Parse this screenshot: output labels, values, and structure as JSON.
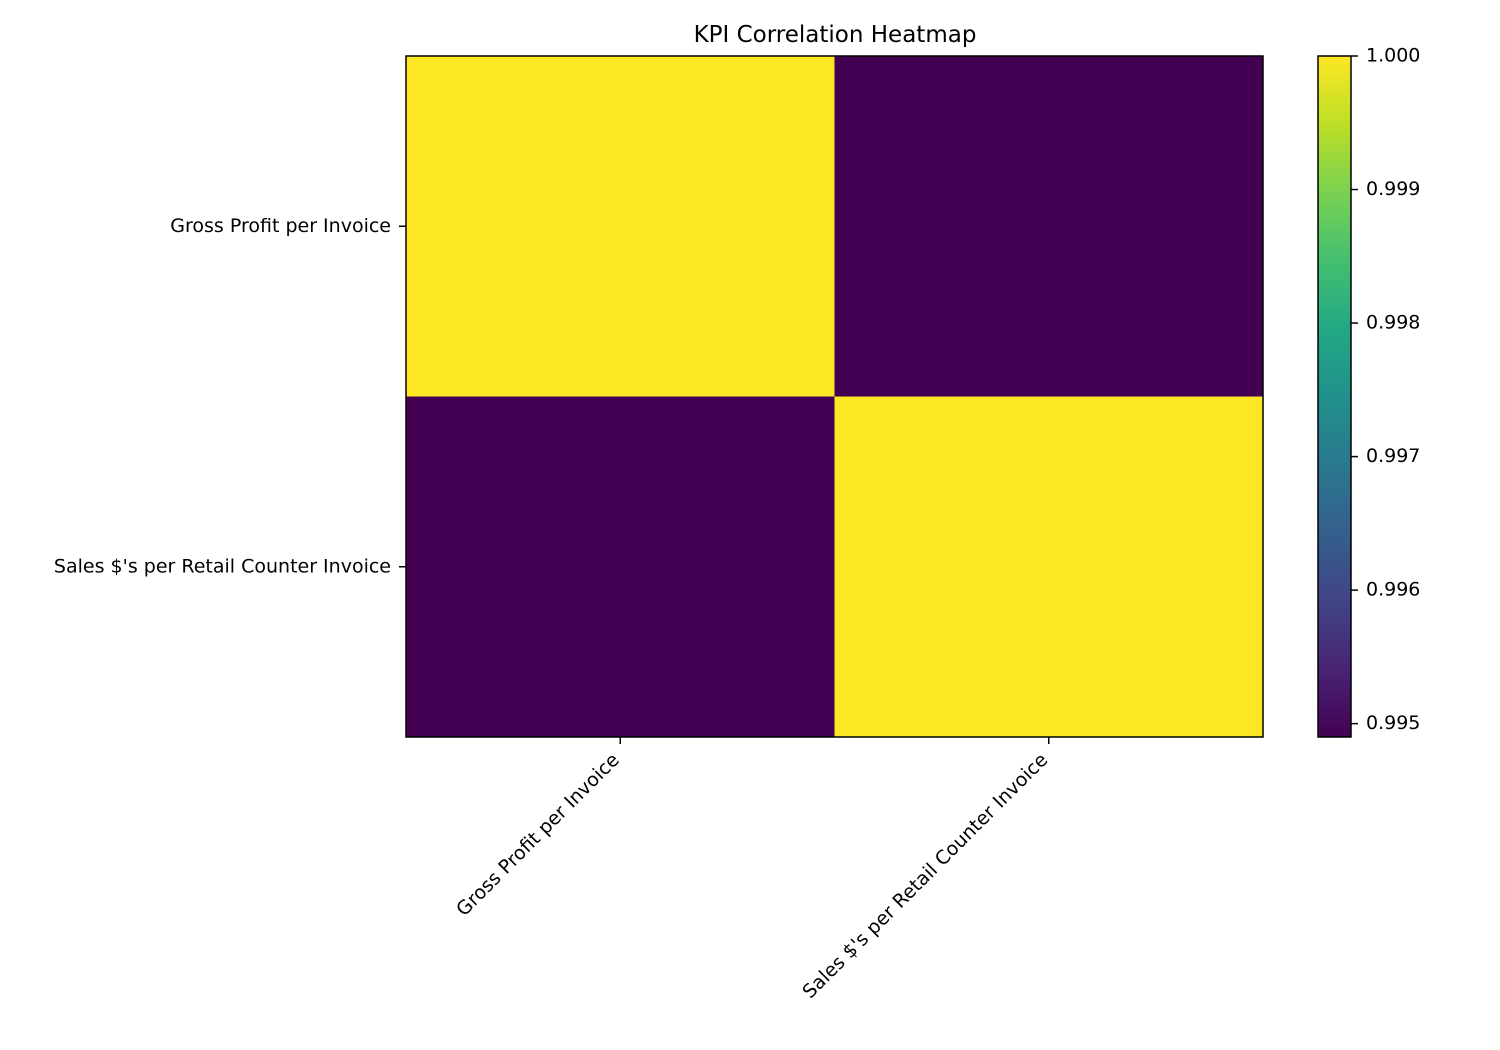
{
  "chart_data": {
    "type": "heatmap",
    "title": "KPI Correlation Heatmap",
    "xlabel": "",
    "ylabel": "",
    "x_categories": [
      "Gross Profit per Invoice",
      "Sales $'s per Retail Counter Invoice"
    ],
    "y_categories": [
      "Gross Profit per Invoice",
      "Sales $'s per Retail Counter Invoice"
    ],
    "values": [
      [
        1.0,
        0.9949
      ],
      [
        0.9949,
        1.0
      ]
    ],
    "colormap": "viridis",
    "colors": {
      "high": "#fde725",
      "low": "#440154"
    },
    "colorbar": {
      "range": [
        0.9949,
        1.0
      ],
      "ticks": [
        0.995,
        0.996,
        0.997,
        0.998,
        0.999,
        1.0
      ],
      "tick_labels": [
        "0.995",
        "0.996",
        "0.997",
        "0.998",
        "0.999",
        "1.000"
      ]
    },
    "grid": false
  }
}
